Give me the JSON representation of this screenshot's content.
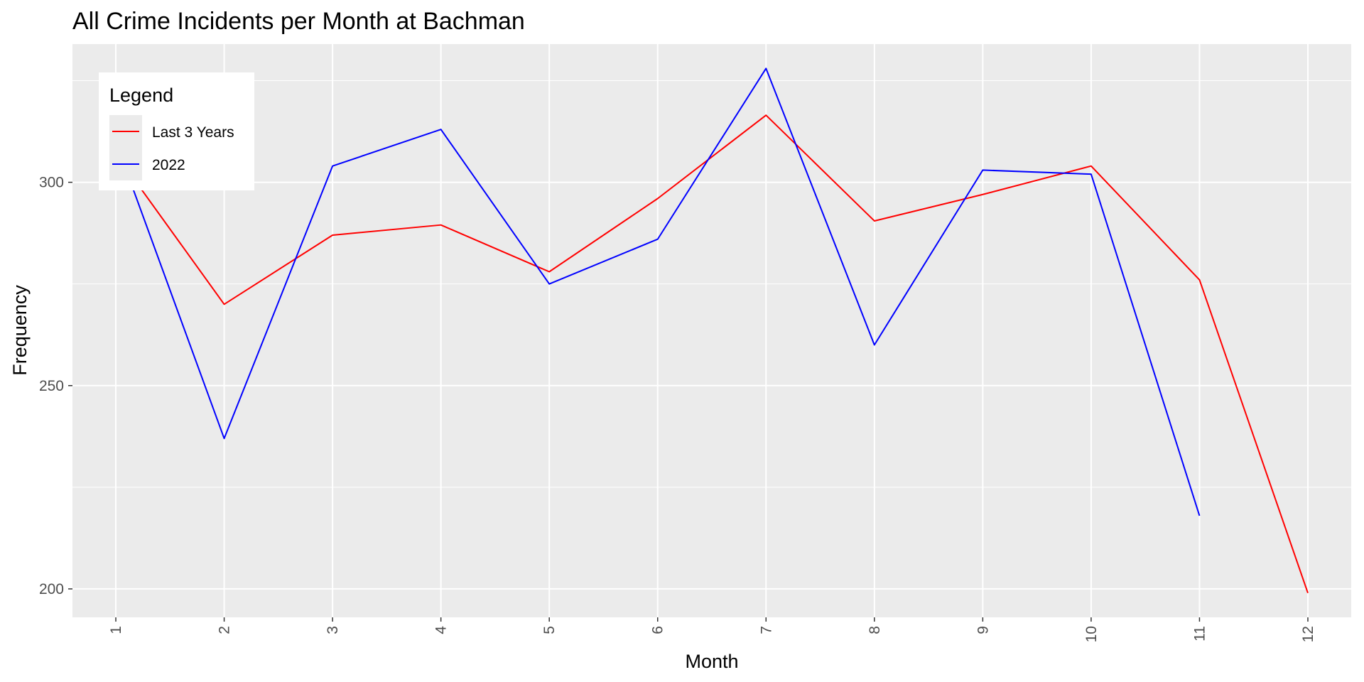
{
  "chart_data": {
    "type": "line",
    "title": "All Crime Incidents per Month at Bachman",
    "xlabel": "Month",
    "ylabel": "Frequency",
    "x": [
      1,
      2,
      3,
      4,
      5,
      6,
      7,
      8,
      9,
      10,
      11,
      12
    ],
    "x_tick_labels": [
      "1",
      "2",
      "3",
      "4",
      "5",
      "6",
      "7",
      "8",
      "9",
      "10",
      "11",
      "12"
    ],
    "y_ticks": [
      200,
      250,
      300
    ],
    "y_tick_labels": [
      "200",
      "250",
      "300"
    ],
    "xlim": [
      0.6,
      12.4
    ],
    "ylim": [
      193,
      334
    ],
    "grid": true,
    "background": "#ebebeb",
    "legend": {
      "title": "Legend",
      "placement": "top-left inside"
    },
    "series": [
      {
        "name": "Last 3 Years",
        "color": "#ff0000",
        "x": [
          1,
          2,
          3,
          4,
          5,
          6,
          7,
          8,
          9,
          10,
          11,
          12
        ],
        "values": [
          307,
          270,
          287,
          289.5,
          278,
          296,
          316.5,
          290.5,
          297,
          304,
          276,
          199
        ]
      },
      {
        "name": "2022",
        "color": "#0000ff",
        "x": [
          1,
          2,
          3,
          4,
          5,
          6,
          7,
          8,
          9,
          10,
          11
        ],
        "values": [
          310,
          237,
          304,
          313,
          275,
          286,
          328,
          260,
          303,
          302,
          218
        ]
      }
    ]
  }
}
